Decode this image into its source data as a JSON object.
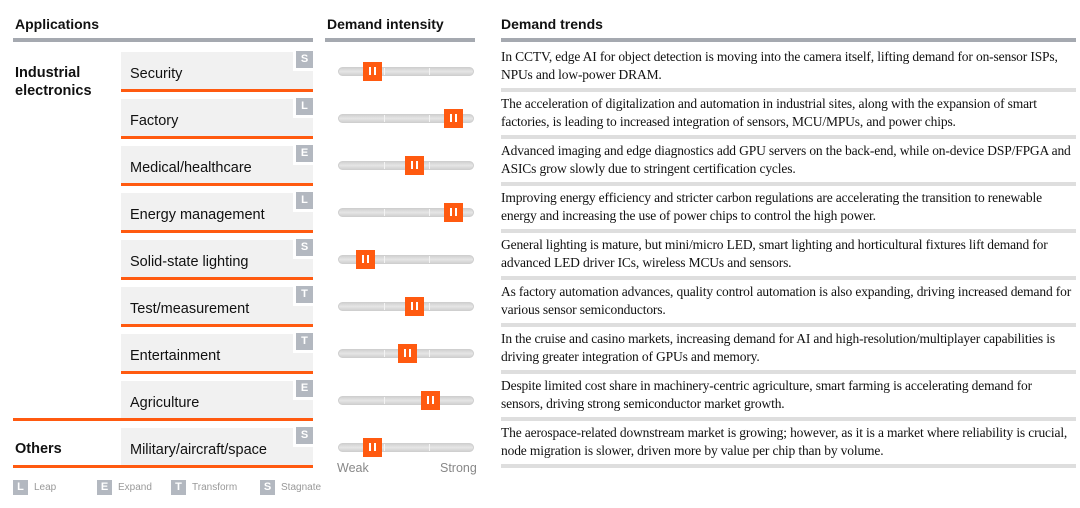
{
  "headers": {
    "applications": "Applications",
    "intensity": "Demand intensity",
    "trends": "Demand trends"
  },
  "groups": [
    {
      "label": "Industrial\nelectronics"
    },
    {
      "label": "Others"
    }
  ],
  "rows": [
    {
      "app": "Security",
      "badge": "S",
      "intensity": 0.24,
      "trend": "In CCTV, edge AI for object detection is moving into the camera itself, lifting demand for on-sensor ISPs, NPUs and low-power DRAM."
    },
    {
      "app": "Factory",
      "badge": "L",
      "intensity": 0.84,
      "trend": "The acceleration of digitalization and automation in industrial sites, along with the expansion of smart factories, is leading to increased integration of sensors, MCU/MPUs, and power chips."
    },
    {
      "app": "Medical/healthcare",
      "badge": "E",
      "intensity": 0.55,
      "trend": "Advanced imaging and edge diagnostics add GPU servers on the back-end, while on-device DSP/FPGA and ASICs grow slowly due to stringent certification cycles."
    },
    {
      "app": "Energy management",
      "badge": "L",
      "intensity": 0.84,
      "trend": "Improving energy efficiency and stricter carbon regulations are accelerating the transition to renewable energy and increasing the use of power chips to control the high power."
    },
    {
      "app": "Solid-state lighting",
      "badge": "S",
      "intensity": 0.19,
      "trend": "General lighting is mature, but mini/micro LED, smart lighting and horticultural fixtures lift demand for advanced LED driver ICs, wireless MCUs and sensors."
    },
    {
      "app": "Test/measurement",
      "badge": "T",
      "intensity": 0.55,
      "trend": "As factory automation advances, quality control automation is also expanding, driving increased demand for various sensor semiconductors."
    },
    {
      "app": "Entertainment",
      "badge": "T",
      "intensity": 0.5,
      "trend": "In the cruise and casino markets, increasing demand for AI and high-resolution/multiplayer capabilities is driving greater integration of GPUs and memory."
    },
    {
      "app": "Agriculture",
      "badge": "E",
      "intensity": 0.67,
      "trend": "Despite limited cost share in machinery-centric agriculture, smart farming is accelerating demand for sensors, driving strong semiconductor market growth."
    },
    {
      "app": "Military/aircraft/space",
      "badge": "S",
      "intensity": 0.24,
      "trend": "The aerospace-related downstream market is growing; however, as it is a market where reliability is crucial, node migration is slower, driven more by value per chip than by volume."
    }
  ],
  "scale": {
    "weak": "Weak",
    "strong": "Strong"
  },
  "legend": [
    {
      "badge": "L",
      "label": "Leap"
    },
    {
      "badge": "E",
      "label": "Expand"
    },
    {
      "badge": "T",
      "label": "Transform"
    },
    {
      "badge": "S",
      "label": "Stagnate"
    }
  ],
  "colors": {
    "accent": "#ff5a10",
    "badge": "#b3b8c0",
    "rule": "#a5a9b0"
  }
}
